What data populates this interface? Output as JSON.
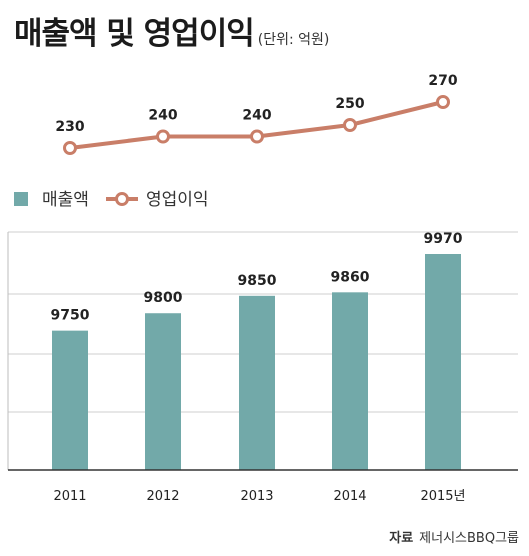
{
  "header": {
    "title": "매출액 및 영업이익",
    "unit": "(단위: 억원)"
  },
  "legend": {
    "revenue": "매출액",
    "profit": "영업이익"
  },
  "source": {
    "label": "자료",
    "text": "제너시스BBQ그룹"
  },
  "colors": {
    "revenue": "#72a9a9",
    "profit": "#c97e68",
    "grid": "#cfcfcf"
  },
  "chart_data": [
    {
      "type": "line",
      "categories": [
        "2011",
        "2012",
        "2013",
        "2014",
        "2015년"
      ],
      "series": [
        {
          "name": "영업이익",
          "values": [
            230,
            240,
            240,
            250,
            270
          ]
        }
      ],
      "ylim": [
        200,
        290
      ],
      "grid": false
    },
    {
      "type": "bar",
      "categories": [
        "2011",
        "2012",
        "2013",
        "2014",
        "2015년"
      ],
      "series": [
        {
          "name": "매출액",
          "values": [
            9750,
            9800,
            9850,
            9860,
            9970
          ]
        }
      ],
      "ylim": [
        9350,
        10020
      ],
      "grid": true
    }
  ]
}
